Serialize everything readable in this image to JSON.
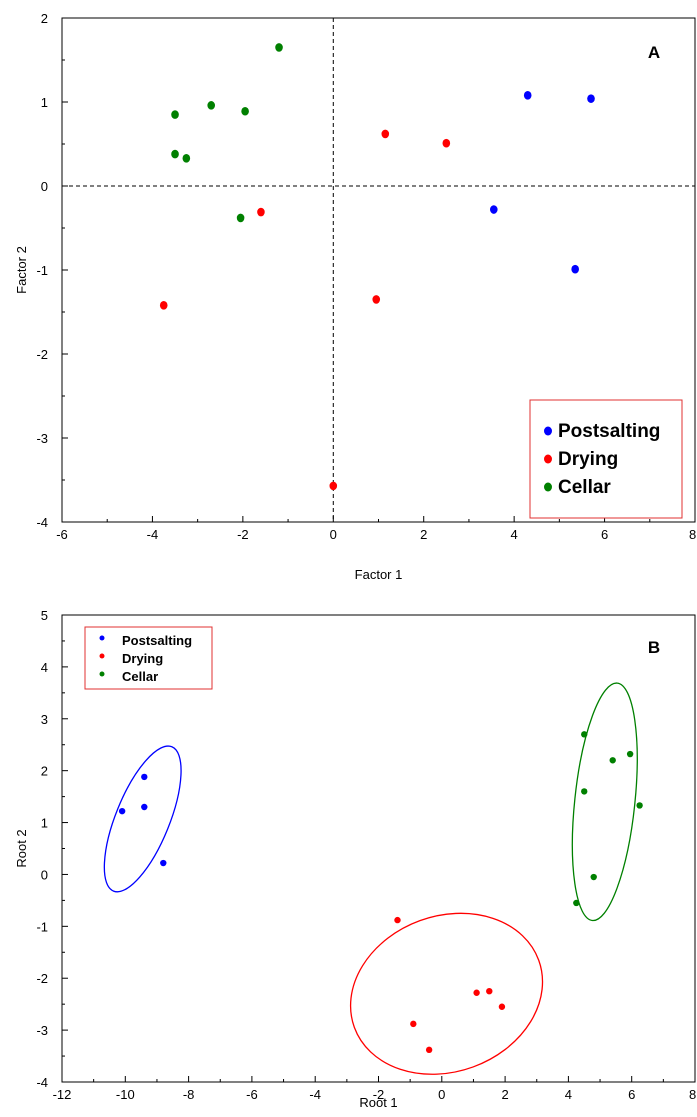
{
  "chart_data": [
    {
      "type": "scatter",
      "panel_label": "A",
      "xlabel": "Factor 1",
      "ylabel": "Factor 2",
      "xlim": [
        -6,
        8
      ],
      "ylim": [
        -4,
        2
      ],
      "xticks": [
        "-6",
        "-4",
        "-2",
        "0",
        "2",
        "4",
        "6",
        "8"
      ],
      "yticks": [
        "-4",
        "-3",
        "-2",
        "-1",
        "0",
        "1",
        "2"
      ],
      "reference_lines": {
        "x": 0,
        "y": 0,
        "style": "dashed"
      },
      "legend_position": "bottom-right",
      "series": [
        {
          "name": "Postsalting",
          "color": "#0000ff",
          "points": [
            [
              4.3,
              1.08
            ],
            [
              5.7,
              1.04
            ],
            [
              3.55,
              -0.28
            ],
            [
              5.35,
              -0.99
            ]
          ]
        },
        {
          "name": "Drying",
          "color": "#ff0000",
          "points": [
            [
              1.15,
              0.62
            ],
            [
              2.5,
              0.51
            ],
            [
              -1.6,
              -0.31
            ],
            [
              -3.75,
              -1.42
            ],
            [
              0.95,
              -1.35
            ],
            [
              0.0,
              -3.57
            ]
          ]
        },
        {
          "name": "Cellar",
          "color": "#008000",
          "points": [
            [
              -1.2,
              1.65
            ],
            [
              -2.7,
              0.96
            ],
            [
              -1.95,
              0.89
            ],
            [
              -3.5,
              0.85
            ],
            [
              -3.5,
              0.38
            ],
            [
              -3.25,
              0.33
            ],
            [
              -2.05,
              -0.38
            ]
          ]
        }
      ]
    },
    {
      "type": "scatter",
      "panel_label": "B",
      "xlabel": "Root 1",
      "ylabel": "Root 2",
      "xlim": [
        -12,
        8
      ],
      "ylim": [
        -4,
        5
      ],
      "xticks": [
        "-12",
        "-10",
        "-8",
        "-6",
        "-4",
        "-2",
        "0",
        "2",
        "4",
        "6",
        "8"
      ],
      "yticks": [
        "-4",
        "-3",
        "-2",
        "-1",
        "0",
        "1",
        "2",
        "3",
        "4",
        "5"
      ],
      "legend_position": "top-left",
      "series": [
        {
          "name": "Postsalting",
          "color": "#0000ff",
          "points": [
            [
              -9.4,
              1.88
            ],
            [
              -10.1,
              1.22
            ],
            [
              -9.4,
              1.3
            ],
            [
              -8.8,
              0.22
            ]
          ],
          "ellipse": {
            "cx": -9.45,
            "cy": 1.07,
            "rx": 0.85,
            "ry": 1.5,
            "angle": 22
          }
        },
        {
          "name": "Drying",
          "color": "#ff0000",
          "points": [
            [
              -1.4,
              -0.88
            ],
            [
              1.1,
              -2.28
            ],
            [
              1.5,
              -2.25
            ],
            [
              1.9,
              -2.55
            ],
            [
              -0.9,
              -2.88
            ],
            [
              -0.4,
              -3.38
            ]
          ],
          "ellipse": {
            "cx": 0.15,
            "cy": -2.3,
            "rx": 3.1,
            "ry": 1.5,
            "angle": -20
          }
        },
        {
          "name": "Cellar",
          "color": "#008000",
          "points": [
            [
              4.5,
              2.7
            ],
            [
              5.95,
              2.32
            ],
            [
              5.4,
              2.2
            ],
            [
              4.5,
              1.6
            ],
            [
              6.25,
              1.33
            ],
            [
              4.8,
              -0.05
            ],
            [
              4.25,
              -0.55
            ]
          ],
          "ellipse": {
            "cx": 5.15,
            "cy": 1.4,
            "rx": 0.95,
            "ry": 2.3,
            "angle": 6
          }
        }
      ]
    }
  ]
}
